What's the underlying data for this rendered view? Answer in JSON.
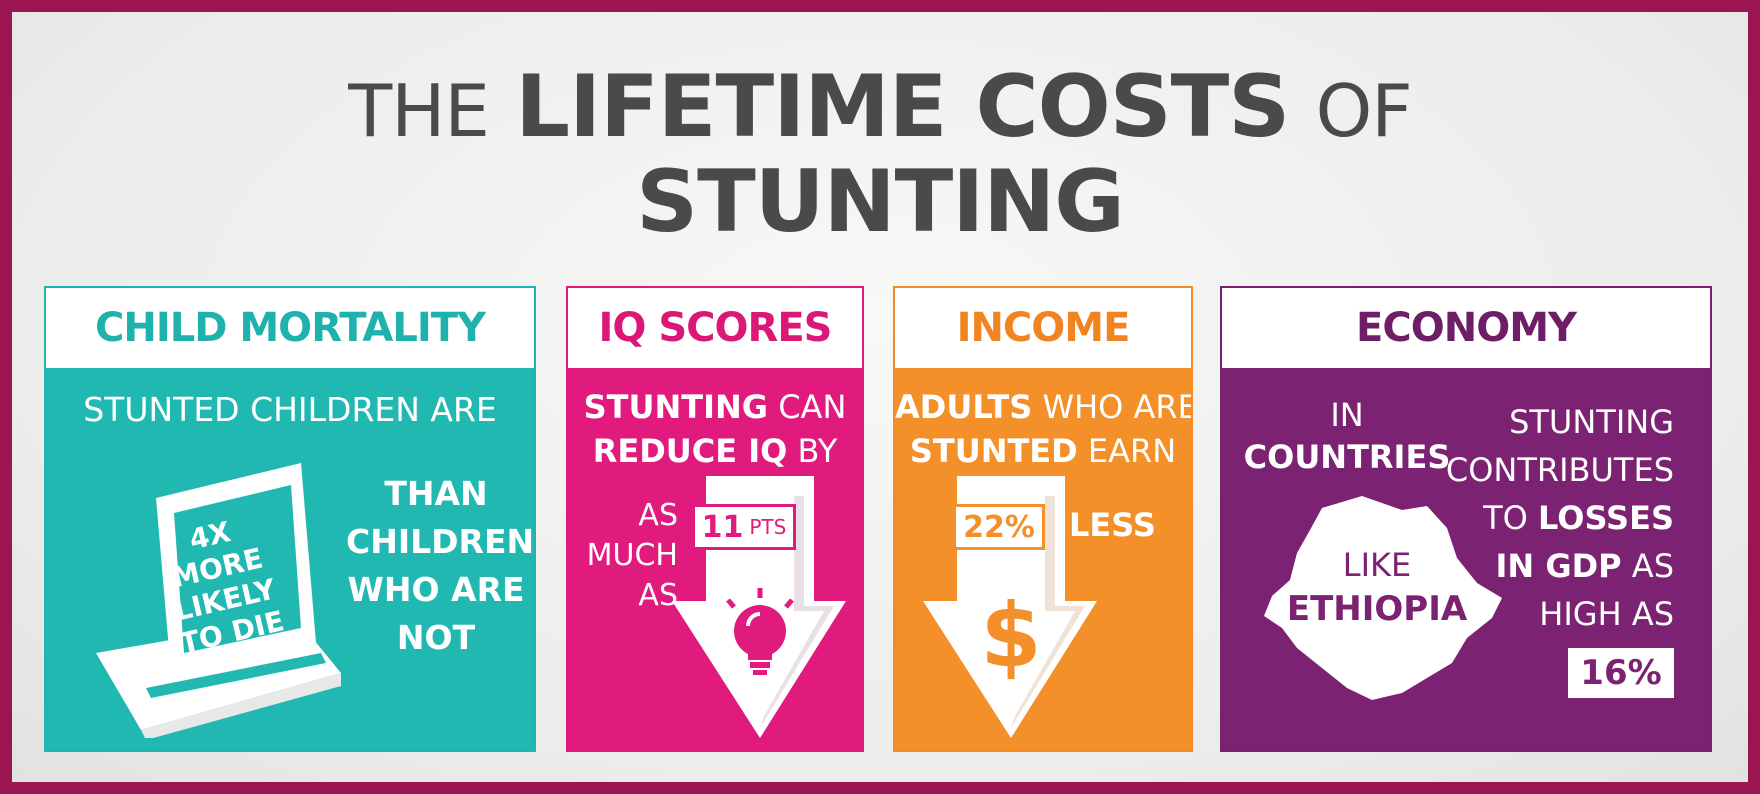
{
  "title": {
    "word_the": "THE",
    "word_lifetime_costs": "LIFETIME COSTS",
    "word_of": "OF",
    "word_stunting": "STUNTING"
  },
  "panels": {
    "child_mortality": {
      "heading": "CHILD MORTALITY",
      "intro": "STUNTED CHILDREN ARE",
      "tombstone_line1": "4x",
      "tombstone_line2": "MORE",
      "tombstone_line3": "LIKELY",
      "tombstone_line4": "TO DIE",
      "right_line1": "THAN",
      "right_line2": "CHILDREN",
      "right_line3": "WHO ARE",
      "right_line4": "NOT",
      "icon": "tombstone-icon"
    },
    "iq_scores": {
      "heading": "IQ SCORES",
      "line1_bold": "STUNTING",
      "line1_thin": "CAN",
      "line2_bold": "REDUCE IQ",
      "line2_thin": "BY",
      "as1": "AS",
      "much": "MUCH",
      "as2": "AS",
      "value": "11",
      "unit": "PTS",
      "icon": "lightbulb-arrow-icon"
    },
    "income": {
      "heading": "INCOME",
      "line1_bold": "ADULTS",
      "line1_thin": "WHO ARE",
      "line2_bold": "STUNTED",
      "line2_thin": "EARN",
      "value": "22%",
      "less": "LESS",
      "icon": "dollar-arrow-icon"
    },
    "economy": {
      "heading": "ECONOMY",
      "in": "IN",
      "countries": "COUNTRIES",
      "like": "LIKE",
      "ethiopia": "ETHIOPIA",
      "r1": "STUNTING",
      "r2": "CONTRIBUTES",
      "r3_thin": "TO",
      "r3_bold": "LOSSES",
      "r4_bold": "IN GDP",
      "r4_thin": "AS",
      "r5": "HIGH AS",
      "value": "16%",
      "icon": "ethiopia-map-icon"
    }
  },
  "colors": {
    "border": "#9b1650",
    "teal": "#22b8b2",
    "magenta": "#e01b7d",
    "orange": "#f3902a",
    "purple": "#7c2272"
  }
}
